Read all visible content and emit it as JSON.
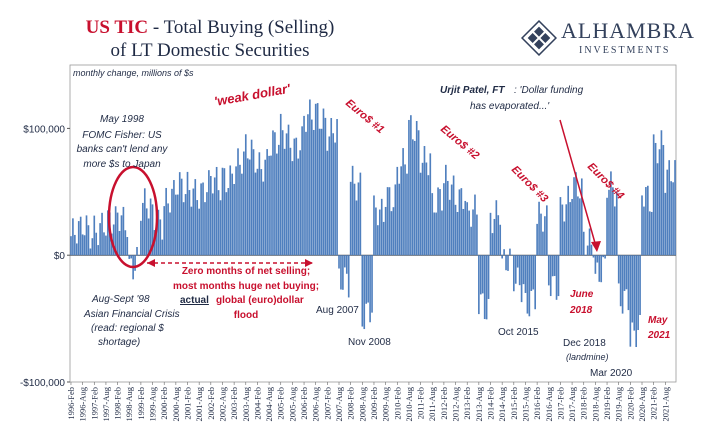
{
  "header": {
    "title_highlight": "US TIC",
    "title_rest": " - Total Buying (Selling)",
    "title_line2": "of LT Domestic Securities"
  },
  "logo": {
    "brand": "ALHAMBRA",
    "sub": "INVESTMENTS"
  },
  "colors": {
    "bar": "#4f7fbe",
    "accent": "#c8102e",
    "text": "#1f2a44"
  },
  "chart_data": {
    "type": "bar",
    "subtitle": "monthly change, millions of $s",
    "ylim": [
      -100000,
      150000
    ],
    "yticks": [
      {
        "value": 100000,
        "label": "$100,000"
      },
      {
        "value": 0,
        "label": "$0"
      },
      {
        "value": -100000,
        "label": "-$100,000"
      }
    ],
    "xtick_labels": [
      "1996-Feb",
      "1996-Aug",
      "1997-Feb",
      "1997-Aug",
      "1998-Feb",
      "1998-Aug",
      "1999-Feb",
      "1999-Aug",
      "2000-Feb",
      "2000-Aug",
      "2001-Feb",
      "2001-Aug",
      "2002-Feb",
      "2002-Aug",
      "2003-Feb",
      "2003-Aug",
      "2004-Feb",
      "2004-Aug",
      "2005-Feb",
      "2005-Aug",
      "2006-Feb",
      "2006-Aug",
      "2007-Feb",
      "2007-Aug",
      "2008-Feb",
      "2008-Aug",
      "2009-Feb",
      "2009-Aug",
      "2010-Feb",
      "2010-Aug",
      "2011-Feb",
      "2011-Aug",
      "2012-Feb",
      "2012-Aug",
      "2013-Feb",
      "2013-Aug",
      "2014-Feb",
      "2014-Aug",
      "2015-Feb",
      "2015-Aug",
      "2016-Feb",
      "2016-Aug",
      "2017-Feb",
      "2017-Aug",
      "2018-Feb",
      "2018-Aug",
      "2019-Feb",
      "2019-Aug",
      "2020-Feb",
      "2020-Aug",
      "2021-Feb",
      "2021-Aug"
    ],
    "semiannual_values": [
      15000,
      20000,
      25000,
      22000,
      30000,
      -5000,
      35000,
      30000,
      45000,
      50000,
      55000,
      50000,
      55000,
      65000,
      70000,
      80000,
      75000,
      85000,
      95000,
      90000,
      105000,
      110000,
      100000,
      -25000,
      60000,
      -45000,
      30000,
      50000,
      70000,
      95000,
      80000,
      40000,
      55000,
      50000,
      30000,
      -40000,
      35000,
      -10000,
      -20000,
      -35000,
      25000,
      -20000,
      40000,
      50000,
      15000,
      -15000,
      50000,
      -30000,
      -65000,
      45000,
      90000,
      60000
    ],
    "annotations": [
      {
        "text": "May 1998",
        "color": "#1f2a44"
      },
      {
        "text": "FOMC Fisher: US",
        "color": "#1f2a44"
      },
      {
        "text": "banks can't lend any",
        "color": "#1f2a44"
      },
      {
        "text": "more $s to Japan",
        "color": "#1f2a44"
      },
      {
        "text": "'weak dollar'",
        "color": "#c8102e"
      },
      {
        "text": "Euro$ #1",
        "color": "#c8102e"
      },
      {
        "text": "Euro$ #2",
        "color": "#c8102e"
      },
      {
        "text": "Euro$ #3",
        "color": "#c8102e"
      },
      {
        "text": "Euro$ #4",
        "color": "#c8102e"
      },
      {
        "text": "Urjit Patel, FT",
        "color": "#1f2a44"
      },
      {
        "text": ": 'Dollar funding",
        "color": "#1f2a44"
      },
      {
        "text": "has evaporated...'",
        "color": "#1f2a44"
      },
      {
        "text": "Zero months of net selling;",
        "color": "#c8102e"
      },
      {
        "text": "most months huge net buying;",
        "color": "#c8102e"
      },
      {
        "text": "actual",
        "color": "#1f2a44"
      },
      {
        "text": " global (euro)dollar",
        "color": "#c8102e"
      },
      {
        "text": "flood",
        "color": "#c8102e"
      },
      {
        "text": "Aug-Sept '98",
        "color": "#1f2a44"
      },
      {
        "text": "Asian Financial Crisis",
        "color": "#1f2a44"
      },
      {
        "text": "(read: regional $",
        "color": "#1f2a44"
      },
      {
        "text": "shortage)",
        "color": "#1f2a44"
      },
      {
        "text": "Aug 2007",
        "color": "#1f2a44"
      },
      {
        "text": "Nov 2008",
        "color": "#1f2a44"
      },
      {
        "text": "Oct 2015",
        "color": "#1f2a44"
      },
      {
        "text": "June",
        "color": "#c8102e"
      },
      {
        "text": "2018",
        "color": "#c8102e"
      },
      {
        "text": "Dec 2018",
        "color": "#1f2a44"
      },
      {
        "text": "(landmine)",
        "color": "#1f2a44"
      },
      {
        "text": "Mar 2020",
        "color": "#1f2a44"
      },
      {
        "text": "May",
        "color": "#c8102e"
      },
      {
        "text": "2021",
        "color": "#c8102e"
      }
    ]
  }
}
